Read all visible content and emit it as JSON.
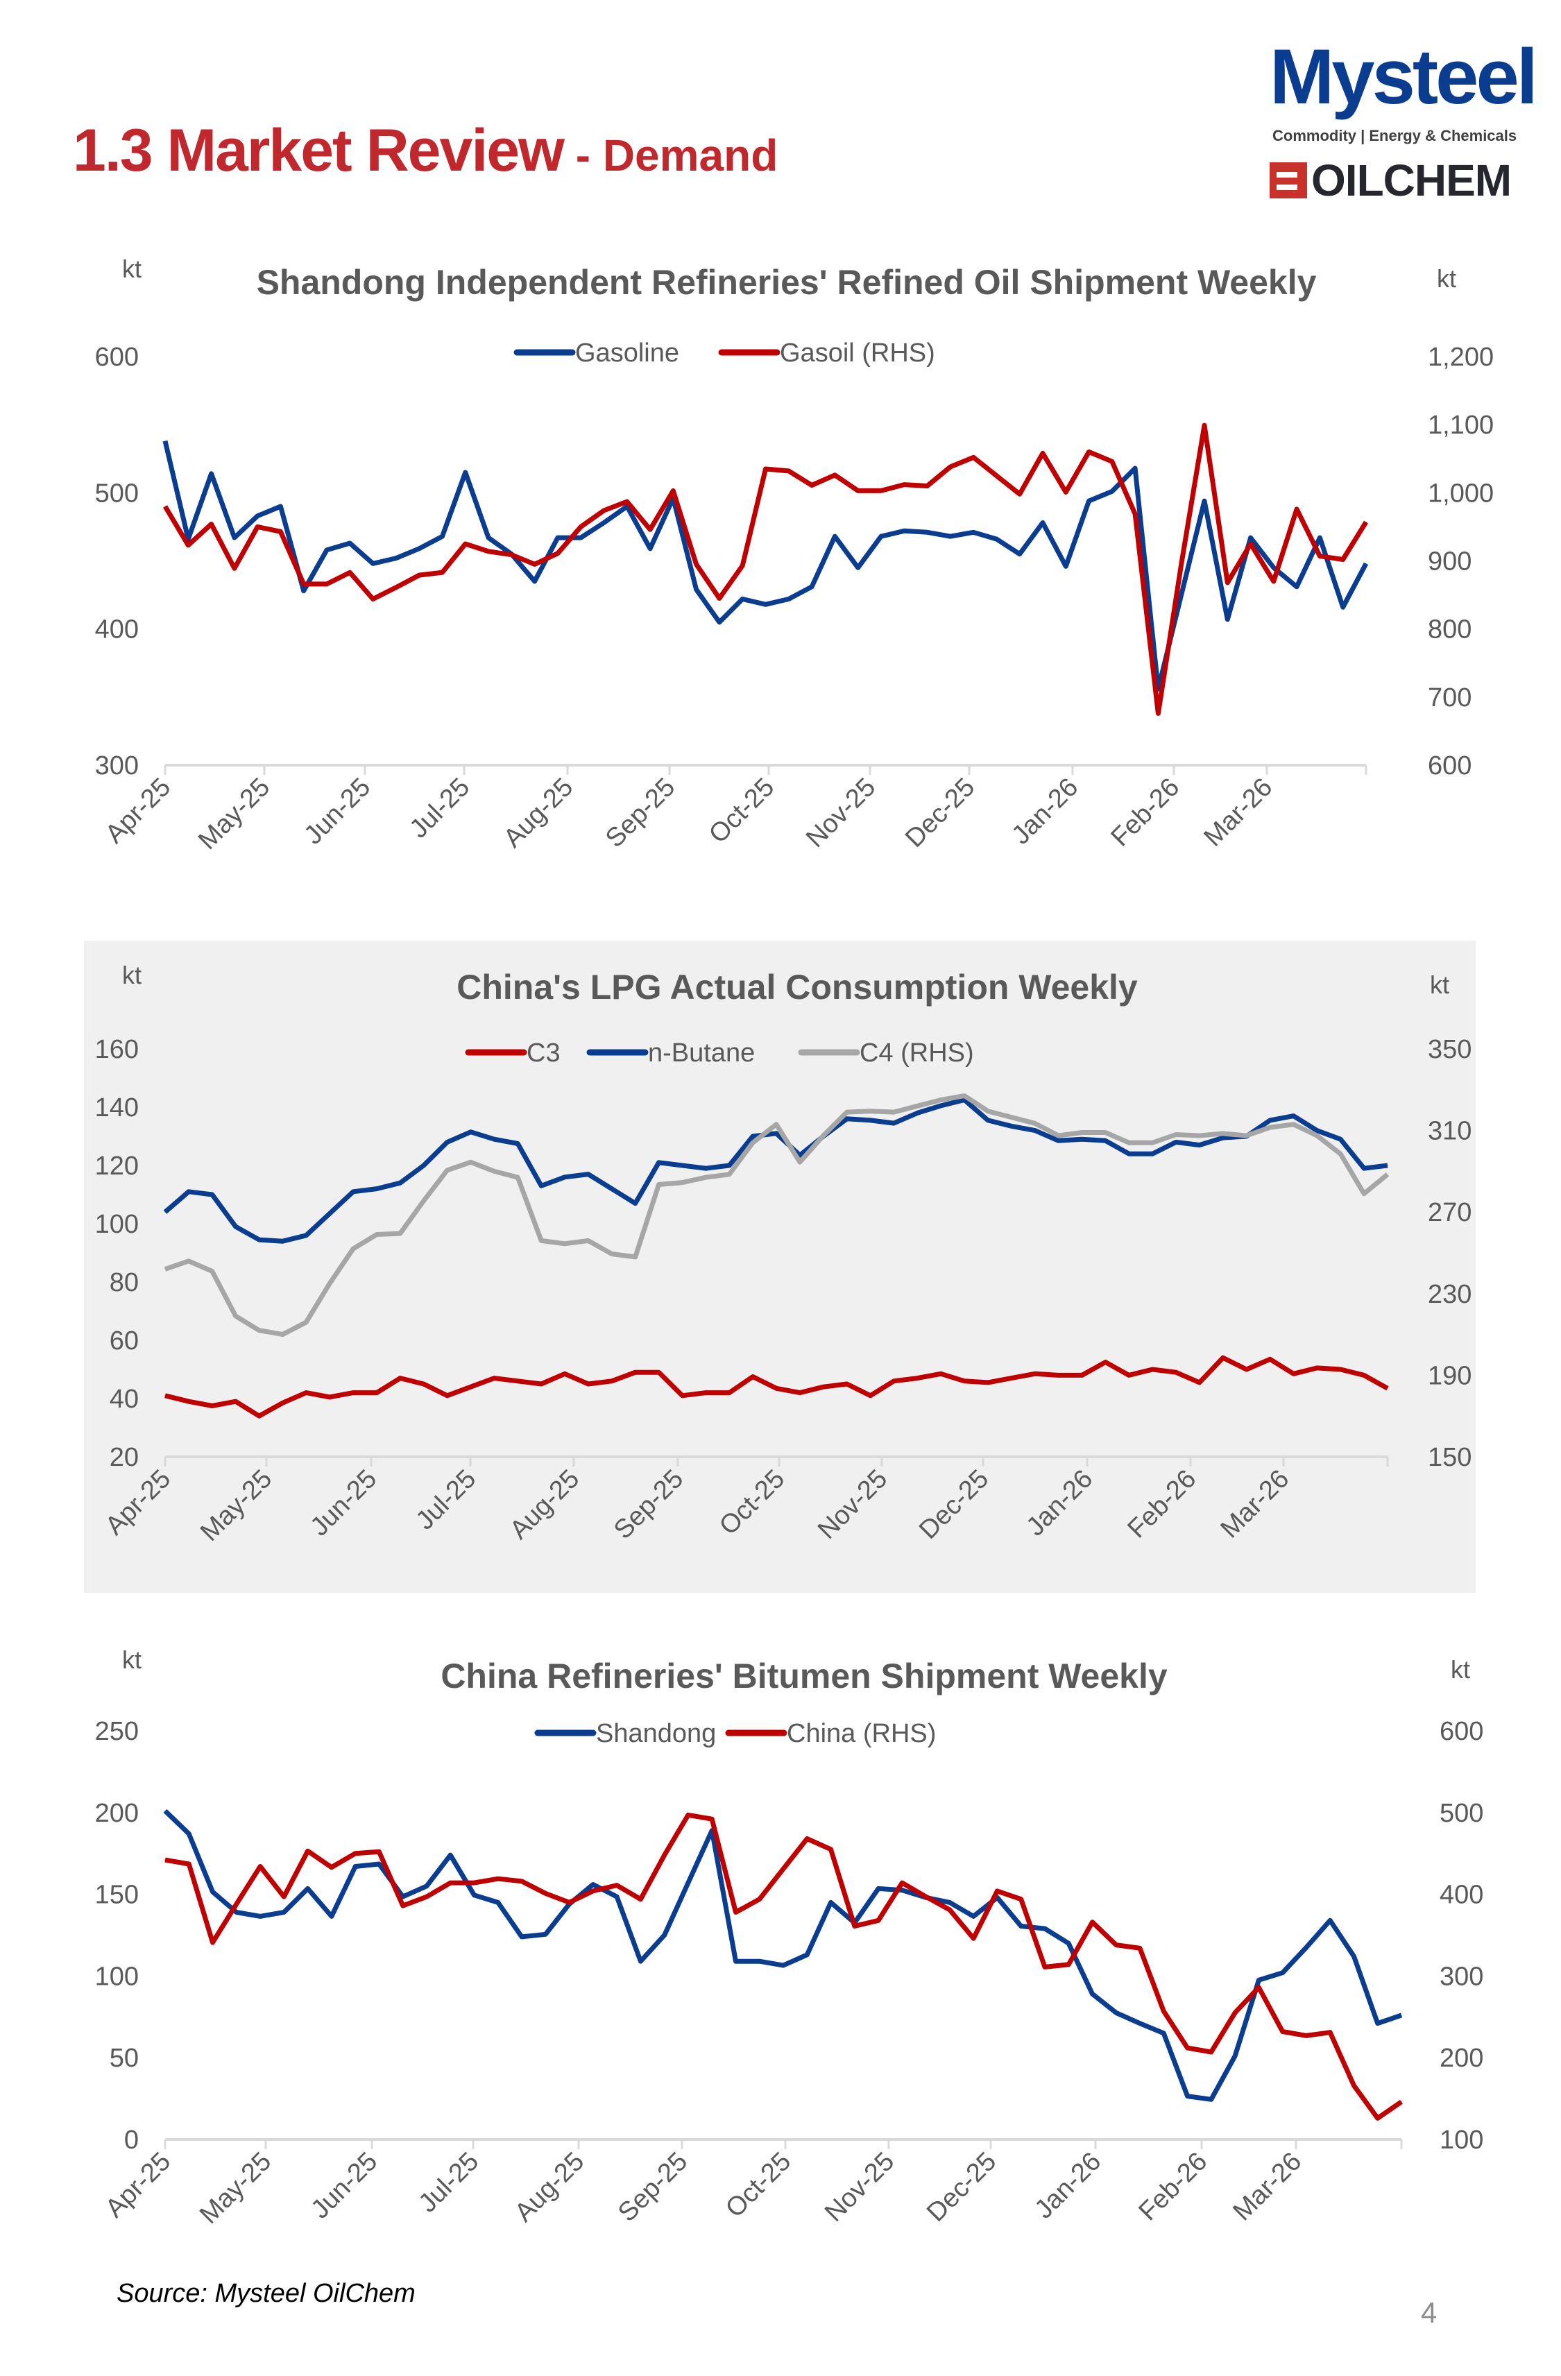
{
  "header": {
    "title_main": "1.3 Market Review",
    "title_sub": " - Demand",
    "logo": {
      "brand": "Mysteel",
      "tagline": "Commodity | Energy & Chemicals",
      "brand2": "OILCHEM"
    }
  },
  "colors": {
    "title_red": "#C0282D",
    "navy": "#0A3D8F",
    "red": "#C00000",
    "gray": "#A6A6A6",
    "text": "#595959"
  },
  "chart_data": [
    {
      "type": "line",
      "title": "Shandong Independent Refineries' Refined Oil Shipment Weekly",
      "ylabel": "kt",
      "y2label": "kt",
      "ylim": [
        300,
        600
      ],
      "y2lim": [
        600,
        1200
      ],
      "yticks": [
        "300",
        "400",
        "500",
        "600"
      ],
      "y2ticks": [
        "600",
        "700",
        "800",
        "900",
        "1,000",
        "1,100",
        "1,200"
      ],
      "xticks": [
        "Apr-25",
        "May-25",
        "Jun-25",
        "Jul-25",
        "Aug-25",
        "Sep-25",
        "Oct-25",
        "Nov-25",
        "Dec-25",
        "Jan-26",
        "Feb-26",
        "Mar-26"
      ],
      "legend": "top-center",
      "grid": false,
      "background": "#FFFFFF",
      "series": [
        {
          "name": "Gasoline",
          "axis": "left",
          "color": "#0A3D8F",
          "values": [
            538,
            466,
            514,
            467,
            483,
            490,
            428,
            458,
            463,
            448,
            452,
            459,
            468,
            515,
            467,
            455,
            435,
            467,
            467,
            478,
            490,
            459,
            496,
            429,
            405,
            422,
            418,
            422,
            431,
            468,
            445,
            468,
            472,
            471,
            468,
            471,
            466,
            455,
            478,
            446,
            494,
            501,
            518,
            356,
            425,
            494,
            407,
            467,
            445,
            431,
            467,
            416,
            448
          ]
        },
        {
          "name": "Gasoil (RHS)",
          "axis": "right",
          "color": "#C00000",
          "values": [
            980,
            923,
            954,
            889,
            950,
            943,
            866,
            866,
            883,
            844,
            861,
            879,
            883,
            925,
            914,
            909,
            895,
            911,
            950,
            974,
            987,
            946,
            1003,
            895,
            845,
            893,
            1035,
            1032,
            1011,
            1026,
            1003,
            1003,
            1012,
            1010,
            1038,
            1052,
            1025,
            998,
            1058,
            1001,
            1060,
            1046,
            969,
            676,
            895,
            1099,
            868,
            925,
            870,
            976,
            907,
            902,
            957
          ]
        }
      ]
    },
    {
      "type": "line",
      "title": "China's LPG Actual Consumption Weekly",
      "ylabel": "kt",
      "y2label": "kt",
      "ylim": [
        20,
        160
      ],
      "y2lim": [
        150,
        350
      ],
      "yticks": [
        "20",
        "40",
        "60",
        "80",
        "100",
        "120",
        "140",
        "160"
      ],
      "y2ticks": [
        "150",
        "190",
        "230",
        "270",
        "310",
        "350"
      ],
      "xticks": [
        "Apr-25",
        "May-25",
        "Jun-25",
        "Jul-25",
        "Aug-25",
        "Sep-25",
        "Oct-25",
        "Nov-25",
        "Dec-25",
        "Jan-26",
        "Feb-26",
        "Mar-26"
      ],
      "legend": "top-center",
      "grid": false,
      "background": "#F0F0F0",
      "series": [
        {
          "name": "C3",
          "axis": "left",
          "color": "#C00000",
          "values": [
            41,
            39,
            37.5,
            39,
            34,
            38.5,
            42,
            40.5,
            42,
            42,
            47,
            45,
            41,
            44,
            47,
            46,
            45,
            48.5,
            45,
            46,
            49,
            49,
            41,
            42,
            42,
            47.5,
            43.5,
            42,
            44,
            45,
            41,
            46,
            47,
            48.5,
            46,
            45.5,
            47,
            48.5,
            48,
            48,
            52.5,
            48,
            50,
            49,
            45.5,
            54,
            50,
            53.5,
            48.5,
            50.5,
            50,
            48,
            43.5
          ]
        },
        {
          "name": "n-Butane",
          "axis": "left",
          "color": "#0A3D8F",
          "values": [
            104,
            111,
            110,
            99,
            94.5,
            94,
            96,
            103.5,
            111,
            112,
            114,
            120,
            128,
            131.5,
            129,
            127.5,
            113,
            116,
            117,
            112,
            107,
            121,
            120,
            119,
            120,
            130,
            131,
            123.5,
            130,
            136,
            135.5,
            134.5,
            138,
            140.5,
            142.5,
            135.5,
            133.5,
            132,
            128.5,
            129,
            128.5,
            124,
            124,
            128,
            127,
            129.5,
            130,
            135.5,
            137,
            132,
            129,
            119,
            120
          ]
        },
        {
          "name": "C4 (RHS)",
          "axis": "right",
          "color": "#A6A6A6",
          "values": [
            242,
            246,
            241,
            219,
            212,
            210,
            216,
            235,
            252,
            259,
            259.5,
            275.5,
            290.5,
            294.5,
            290,
            287,
            256,
            254.5,
            256,
            249.5,
            248,
            283.5,
            284.5,
            287,
            288.5,
            304,
            313,
            294.5,
            307.5,
            319,
            319.5,
            319,
            322,
            325,
            327,
            319.5,
            316.5,
            313.5,
            307.5,
            309,
            309,
            304,
            304,
            308,
            307.5,
            308.5,
            307.5,
            311.5,
            313,
            307.5,
            298.5,
            279,
            288.5
          ]
        }
      ]
    },
    {
      "type": "line",
      "title": "China Refineries' Bitumen Shipment Weekly",
      "ylabel": "kt",
      "y2label": "kt",
      "ylim": [
        0,
        250
      ],
      "y2lim": [
        100,
        600
      ],
      "yticks": [
        "0",
        "50",
        "100",
        "150",
        "200",
        "250"
      ],
      "y2ticks": [
        "100",
        "200",
        "300",
        "400",
        "500",
        "600"
      ],
      "xticks": [
        "Apr-25",
        "May-25",
        "Jun-25",
        "Jul-25",
        "Aug-25",
        "Sep-25",
        "Oct-25",
        "Nov-25",
        "Dec-25",
        "Jan-26",
        "Feb-26",
        "Mar-26"
      ],
      "legend": "top-center",
      "grid": false,
      "background": "#FFFFFF",
      "series": [
        {
          "name": "Shandong",
          "axis": "left",
          "color": "#0A3D8F",
          "values": [
            201,
            187,
            151.5,
            139,
            136.5,
            139,
            153.5,
            136.5,
            167,
            168.5,
            148.5,
            155,
            174,
            149.5,
            145,
            124,
            125.5,
            144,
            156,
            148.5,
            109,
            125,
            157,
            189,
            109,
            109,
            106.5,
            113,
            145,
            132.5,
            153.5,
            152.5,
            148,
            145,
            136.5,
            148,
            130.5,
            129,
            120,
            89,
            77.5,
            71,
            65,
            26.5,
            24.5,
            51,
            97.5,
            102,
            117.5,
            134,
            112,
            71,
            76
          ]
        },
        {
          "name": "China (RHS)",
          "axis": "right",
          "color": "#C00000",
          "values": [
            442,
            437,
            341,
            388,
            434,
            397,
            453,
            433,
            450,
            452,
            386,
            397,
            414,
            414,
            419,
            416,
            401,
            390,
            404,
            411,
            394,
            448,
            497,
            492,
            378,
            394,
            431,
            468,
            455,
            361,
            368,
            414,
            397,
            381,
            346,
            404,
            394,
            311,
            314,
            366,
            338,
            334,
            257,
            212,
            207,
            255,
            286,
            232,
            227,
            231,
            166,
            126,
            146
          ]
        }
      ]
    }
  ],
  "footer": {
    "source": "Source: Mysteel OilChem",
    "page_number": "4"
  }
}
